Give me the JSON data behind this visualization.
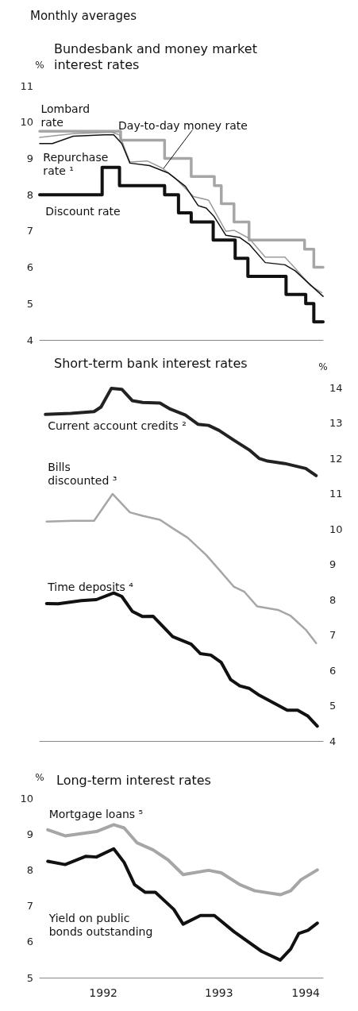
{
  "chart_data": [
    {
      "type": "line",
      "title": "Bundesbank and money market interest rates",
      "ylabel": "%",
      "annotations": [
        "Monthly averages"
      ],
      "xlim": [
        1991.95,
        1994.4
      ],
      "ylim": [
        4,
        11
      ],
      "yticks": [
        4,
        5,
        6,
        7,
        8,
        9,
        10,
        11
      ],
      "tick_labels": "y",
      "grid": false,
      "legend": false,
      "marker": "none",
      "series": [
        {
          "name": "Lombard rate",
          "type": "step",
          "color": "#a6a6a6",
          "x": [
            1991.95,
            1992.65,
            1993.03,
            1993.26,
            1993.46,
            1993.52,
            1993.63,
            1993.76,
            1994.24,
            1994.32,
            1994.4
          ],
          "values": [
            9.75,
            9.5,
            9.0,
            8.5,
            8.25,
            7.75,
            7.25,
            6.75,
            6.5,
            6.0,
            6.0
          ]
        },
        {
          "name": "Day-to-day money rate",
          "color": "#9a9a9a",
          "x": [
            1991.95,
            1992.24,
            1992.57,
            1992.64,
            1992.73,
            1992.88,
            1993.01,
            1993.12,
            1993.28,
            1993.41,
            1993.56,
            1993.63,
            1993.76,
            1993.9,
            1994.07,
            1994.16,
            1994.29,
            1994.39
          ],
          "values": [
            9.58,
            9.68,
            9.72,
            9.65,
            8.9,
            8.93,
            8.73,
            8.46,
            7.95,
            7.85,
            6.99,
            7.02,
            6.8,
            6.28,
            6.28,
            5.97,
            5.5,
            5.3
          ]
        },
        {
          "name": "Discount rate",
          "type": "step",
          "color": "#111111",
          "x": [
            1991.95,
            1992.49,
            1992.64,
            1993.03,
            1993.15,
            1993.26,
            1993.45,
            1993.64,
            1993.75,
            1994.08,
            1994.25,
            1994.32,
            1994.4
          ],
          "values": [
            8.0,
            8.75,
            8.25,
            8.0,
            7.5,
            7.25,
            6.75,
            6.25,
            5.75,
            5.25,
            5.0,
            4.5,
            4.5
          ]
        },
        {
          "name": "Repurchase rate ¹",
          "color": "#111111",
          "x": [
            1991.95,
            1992.06,
            1992.24,
            1992.51,
            1992.59,
            1992.66,
            1992.73,
            1992.9,
            1993.06,
            1993.21,
            1993.32,
            1993.39,
            1993.46,
            1993.56,
            1993.68,
            1993.76,
            1993.9,
            1994.07,
            1994.16,
            1994.32,
            1994.4
          ],
          "values": [
            9.41,
            9.41,
            9.61,
            9.65,
            9.65,
            9.41,
            8.87,
            8.8,
            8.6,
            8.23,
            7.7,
            7.63,
            7.39,
            6.88,
            6.82,
            6.64,
            6.13,
            6.07,
            5.9,
            5.43,
            5.2
          ]
        }
      ]
    },
    {
      "type": "line",
      "title": "Short-term bank interest rates",
      "y2label": "%",
      "xlim": [
        1991.95,
        1994.4
      ],
      "y2lim": [
        4,
        14
      ],
      "y2ticks": [
        4,
        5,
        6,
        7,
        8,
        9,
        10,
        11,
        12,
        13,
        14
      ],
      "tick_labels": "y2",
      "grid": false,
      "legend": false,
      "marker": "none",
      "series": [
        {
          "name": "Current account credits ²",
          "axis": "y2",
          "color": "#222222",
          "x": [
            1992.0,
            1992.22,
            1992.42,
            1992.48,
            1992.57,
            1992.66,
            1992.75,
            1992.84,
            1992.99,
            1993.08,
            1993.21,
            1993.32,
            1993.41,
            1993.5,
            1993.63,
            1993.76,
            1993.85,
            1993.92,
            1994.07,
            1994.25,
            1994.34
          ],
          "values": [
            13.24,
            13.27,
            13.32,
            13.45,
            13.98,
            13.95,
            13.63,
            13.58,
            13.56,
            13.39,
            13.22,
            12.96,
            12.93,
            12.79,
            12.51,
            12.24,
            11.99,
            11.92,
            11.85,
            11.71,
            11.51
          ]
        },
        {
          "name": "Bills discounted ³",
          "axis": "y2",
          "color": "#a6a6a6",
          "x": [
            1992.01,
            1992.24,
            1992.42,
            1992.58,
            1992.73,
            1992.84,
            1992.99,
            1993.1,
            1993.23,
            1993.39,
            1993.5,
            1993.63,
            1993.72,
            1993.83,
            1994.01,
            1994.12,
            1994.25,
            1994.34
          ],
          "values": [
            10.21,
            10.23,
            10.23,
            10.99,
            10.47,
            10.37,
            10.26,
            10.02,
            9.75,
            9.26,
            8.85,
            8.36,
            8.22,
            7.81,
            7.71,
            7.54,
            7.15,
            6.77
          ]
        },
        {
          "name": "Time deposits ⁴",
          "axis": "y2",
          "color": "#111111",
          "x": [
            1992.01,
            1992.11,
            1992.31,
            1992.44,
            1992.59,
            1992.66,
            1992.75,
            1992.84,
            1992.93,
            1993.1,
            1993.26,
            1993.34,
            1993.43,
            1993.52,
            1993.6,
            1993.68,
            1993.76,
            1993.85,
            1994.01,
            1994.09,
            1994.18,
            1994.27,
            1994.35
          ],
          "values": [
            7.89,
            7.88,
            7.97,
            8.0,
            8.19,
            8.09,
            7.67,
            7.52,
            7.53,
            6.95,
            6.74,
            6.47,
            6.43,
            6.22,
            5.74,
            5.56,
            5.49,
            5.29,
            5.01,
            4.87,
            4.87,
            4.7,
            4.42
          ]
        }
      ]
    },
    {
      "type": "line",
      "title": "Long-term interest rates",
      "ylabel": "%",
      "xlim": [
        1991.95,
        1994.4
      ],
      "xticks": [
        {
          "value": 1992.5,
          "label": "1992"
        },
        {
          "value": 1993.5,
          "label": "1993"
        },
        {
          "value": 1994.25,
          "label": "1994"
        }
      ],
      "ylim": [
        5,
        10
      ],
      "yticks": [
        5,
        6,
        7,
        8,
        9,
        10
      ],
      "grid": false,
      "legend": false,
      "marker": "none",
      "series": [
        {
          "name": "Mortgage loans ⁵",
          "color": "#a6a6a6",
          "x": [
            1992.02,
            1992.17,
            1992.44,
            1992.59,
            1992.68,
            1992.79,
            1992.93,
            1993.06,
            1993.19,
            1993.41,
            1993.52,
            1993.68,
            1993.81,
            1994.03,
            1994.12,
            1994.21,
            1994.35
          ],
          "values": [
            9.12,
            8.95,
            9.07,
            9.26,
            9.17,
            8.76,
            8.56,
            8.28,
            7.87,
            7.99,
            7.92,
            7.59,
            7.42,
            7.31,
            7.42,
            7.73,
            8.0
          ]
        },
        {
          "name": "Yield on public bonds outstanding",
          "color": "#111111",
          "x": [
            1992.02,
            1992.17,
            1992.35,
            1992.44,
            1992.59,
            1992.68,
            1992.77,
            1992.86,
            1992.95,
            1993.04,
            1993.11,
            1993.19,
            1993.34,
            1993.46,
            1993.63,
            1993.87,
            1994.03,
            1994.12,
            1994.19,
            1994.27,
            1994.35
          ],
          "values": [
            8.24,
            8.15,
            8.38,
            8.36,
            8.59,
            8.21,
            7.59,
            7.38,
            7.38,
            7.11,
            6.9,
            6.49,
            6.73,
            6.73,
            6.28,
            5.73,
            5.49,
            5.8,
            6.23,
            6.32,
            6.52
          ]
        }
      ]
    }
  ]
}
